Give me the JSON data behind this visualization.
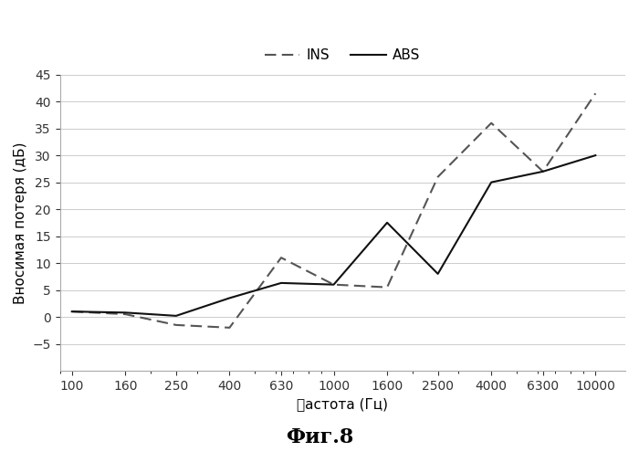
{
  "title": "",
  "xlabel": "䉿астота (Гц)",
  "ylabel": "Вносимая потеря (дБ)",
  "fig_label": "Фиг.8",
  "x_ticks": [
    100,
    160,
    250,
    400,
    630,
    1000,
    1600,
    2500,
    4000,
    6300,
    10000
  ],
  "ylim": [
    -10,
    45
  ],
  "INS_x": [
    100,
    160,
    250,
    400,
    630,
    1000,
    1600,
    2500,
    4000,
    6300,
    10000
  ],
  "INS_y": [
    1.0,
    0.5,
    -1.5,
    -2.0,
    11.0,
    6.0,
    5.5,
    26.0,
    36.0,
    27.0,
    41.5
  ],
  "ABS_x": [
    100,
    160,
    250,
    400,
    630,
    1000,
    1600,
    2500,
    4000,
    6300,
    10000
  ],
  "ABS_y": [
    1.0,
    0.8,
    0.2,
    3.5,
    6.3,
    6.0,
    17.5,
    8.0,
    25.0,
    27.0,
    30.0
  ],
  "INS_color": "#555555",
  "ABS_color": "#111111",
  "INS_linewidth": 1.5,
  "ABS_linewidth": 1.5,
  "background_color": "#ffffff",
  "grid_color": "#cccccc"
}
